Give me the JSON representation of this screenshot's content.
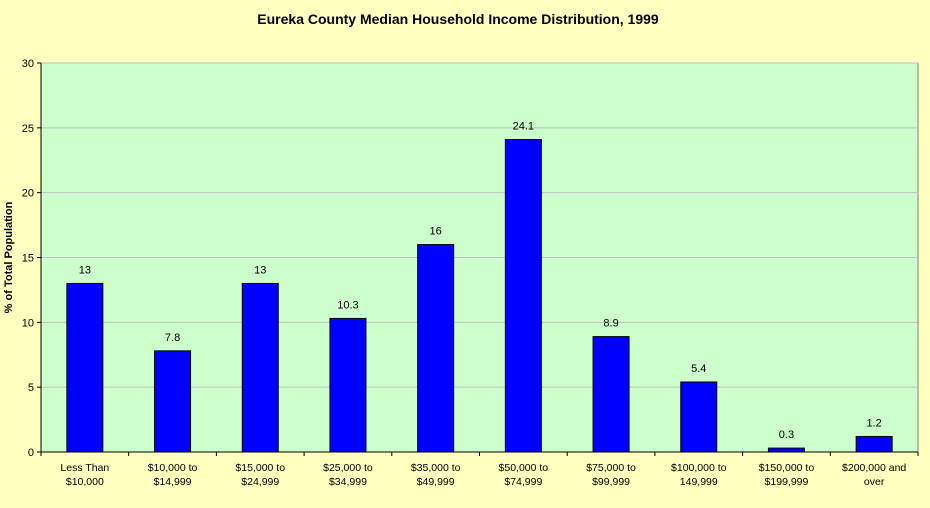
{
  "chart_data": {
    "type": "bar",
    "title": "Eureka County Median Household Income Distribution, 1999",
    "xlabel": "",
    "ylabel": "% of Total Population",
    "ylim": [
      0,
      30
    ],
    "yticks": [
      0,
      5,
      10,
      15,
      20,
      25,
      30
    ],
    "categories": [
      [
        "Less Than",
        "$10,000"
      ],
      [
        "$10,000 to",
        "$14,999"
      ],
      [
        "$15,000 to",
        "$24,999"
      ],
      [
        "$25,000 to",
        "$34,999"
      ],
      [
        "$35,000 to",
        "$49,999"
      ],
      [
        "$50,000 to",
        "$74,999"
      ],
      [
        "$75,000 to",
        "$99,999"
      ],
      [
        "$100,000 to",
        "149,999"
      ],
      [
        "$150,000 to",
        "$199,999"
      ],
      [
        "$200,000 and",
        "over"
      ]
    ],
    "values": [
      13,
      7.8,
      13,
      10.3,
      16,
      24.1,
      8.9,
      5.4,
      0.3,
      1.2
    ],
    "data_labels": [
      "13",
      "7.8",
      "13",
      "10.3",
      "16",
      "24.1",
      "8.9",
      "5.4",
      "0.3",
      "1.2"
    ],
    "grid": true,
    "legend": "none",
    "colors": {
      "background": "#FFFFC0",
      "plot_area": "#CCFFCC",
      "bar": "#0000FF",
      "gridline": "#C0C0C0"
    }
  }
}
